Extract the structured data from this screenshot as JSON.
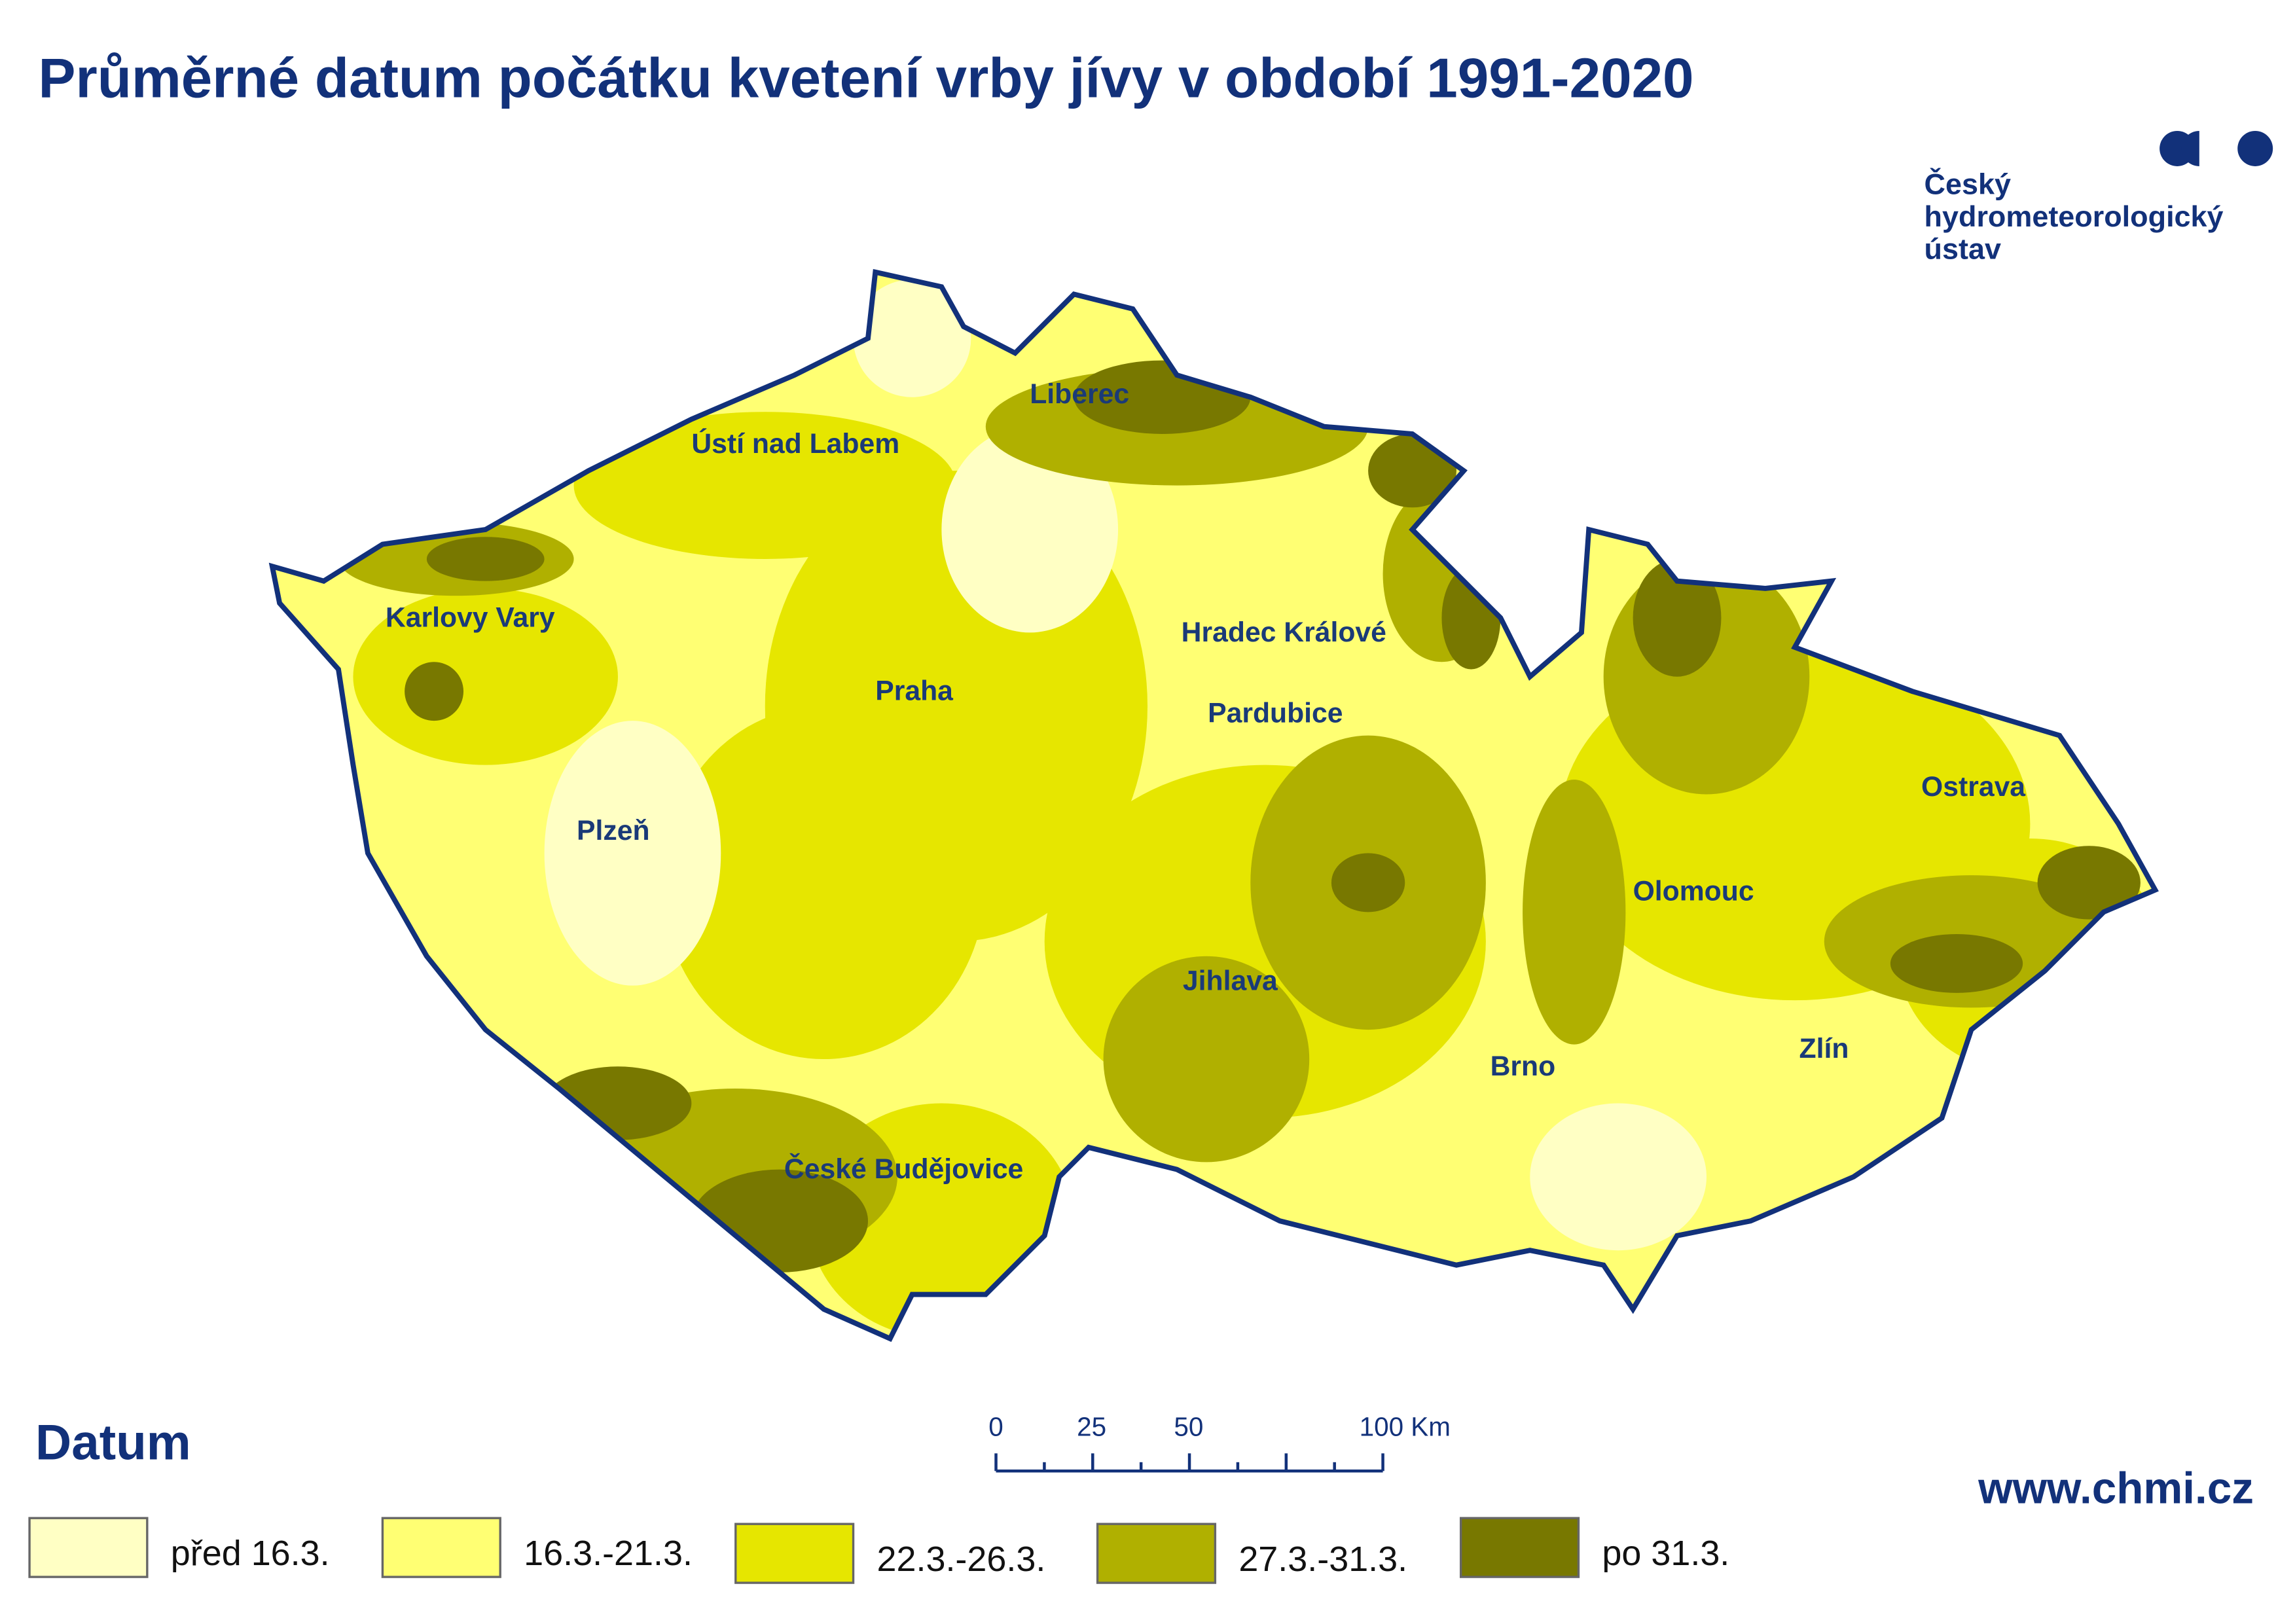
{
  "header": {
    "title": "Průměrné datum počátku kvetení vrby jívy v období 1991-2020"
  },
  "logo": {
    "lines": [
      "Český",
      "hydrometeorologický",
      "ústav"
    ]
  },
  "map": {
    "cities": [
      {
        "label": "Liberec"
      },
      {
        "label": "Ústí nad Labem"
      },
      {
        "label": "Karlovy Vary"
      },
      {
        "label": "Hradec Králové"
      },
      {
        "label": "Praha"
      },
      {
        "label": "Pardubice"
      },
      {
        "label": "Ostrava"
      },
      {
        "label": "Plzeň"
      },
      {
        "label": "Olomouc"
      },
      {
        "label": "Jihlava"
      },
      {
        "label": "Brno"
      },
      {
        "label": "Zlín"
      },
      {
        "label": "České Budějovice"
      }
    ]
  },
  "legend": {
    "title": "Datum",
    "items": [
      {
        "label": "před 16.3.",
        "color": "#ffffc4"
      },
      {
        "label": "16.3.-21.3.",
        "color": "#ffff73"
      },
      {
        "label": "22.3.-26.3.",
        "color": "#e6e600"
      },
      {
        "label": "27.3.-31.3.",
        "color": "#b0b000"
      },
      {
        "label": "po 31.3.",
        "color": "#787800"
      }
    ]
  },
  "scale_bar": {
    "labels": [
      "0",
      "25",
      "50",
      "100 Km"
    ]
  },
  "footer": {
    "url": "www.chmi.cz"
  }
}
